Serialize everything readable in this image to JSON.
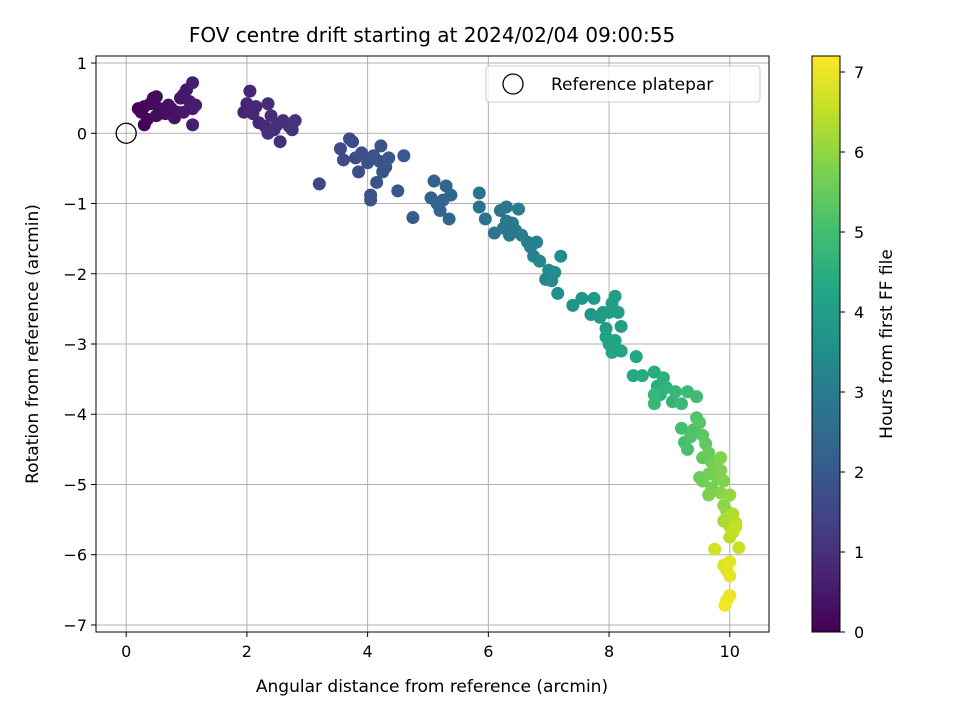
{
  "chart_data": {
    "type": "scatter",
    "title": "FOV centre drift starting at 2024/02/04 09:00:55",
    "xlabel": "Angular distance from reference (arcmin)",
    "ylabel": "Rotation from reference (arcmin)",
    "xlim": [
      -0.5,
      10.65
    ],
    "ylim": [
      -7.1,
      1.1
    ],
    "x_ticks": [
      0,
      2,
      4,
      6,
      8,
      10
    ],
    "y_ticks": [
      1,
      0,
      -1,
      -2,
      -3,
      -4,
      -5,
      -6,
      -7
    ],
    "grid": true,
    "legend": {
      "position": "top-right",
      "entries": [
        "Reference platepar"
      ]
    },
    "reference_point": {
      "x": 0,
      "y": 0
    },
    "colorbar": {
      "label": "Hours from first FF file",
      "colormap": "viridis",
      "range": [
        0,
        7.2
      ],
      "ticks": [
        0,
        1,
        2,
        3,
        4,
        5,
        6,
        7
      ]
    },
    "points": [
      {
        "x": 0.2,
        "y": 0.35,
        "t": 0.05
      },
      {
        "x": 0.3,
        "y": 0.38,
        "t": 0.1
      },
      {
        "x": 0.25,
        "y": 0.3,
        "t": 0.12
      },
      {
        "x": 0.35,
        "y": 0.2,
        "t": 0.15
      },
      {
        "x": 0.4,
        "y": 0.42,
        "t": 0.18
      },
      {
        "x": 0.45,
        "y": 0.5,
        "t": 0.2
      },
      {
        "x": 0.5,
        "y": 0.52,
        "t": 0.22
      },
      {
        "x": 0.55,
        "y": 0.35,
        "t": 0.25
      },
      {
        "x": 0.6,
        "y": 0.3,
        "t": 0.28
      },
      {
        "x": 0.65,
        "y": 0.28,
        "t": 0.3
      },
      {
        "x": 0.7,
        "y": 0.4,
        "t": 0.32
      },
      {
        "x": 0.75,
        "y": 0.35,
        "t": 0.35
      },
      {
        "x": 0.8,
        "y": 0.22,
        "t": 0.38
      },
      {
        "x": 0.85,
        "y": 0.3,
        "t": 0.4
      },
      {
        "x": 0.9,
        "y": 0.5,
        "t": 0.42
      },
      {
        "x": 0.95,
        "y": 0.55,
        "t": 0.45
      },
      {
        "x": 1.0,
        "y": 0.62,
        "t": 0.5
      },
      {
        "x": 1.05,
        "y": 0.45,
        "t": 0.52
      },
      {
        "x": 1.1,
        "y": 0.35,
        "t": 0.55
      },
      {
        "x": 1.15,
        "y": 0.4,
        "t": 0.58
      },
      {
        "x": 1.1,
        "y": 0.72,
        "t": 0.6
      },
      {
        "x": 1.1,
        "y": 0.12,
        "t": 0.62
      },
      {
        "x": 0.3,
        "y": 0.12,
        "t": 0.08
      },
      {
        "x": 0.5,
        "y": 0.25,
        "t": 0.2
      },
      {
        "x": 0.95,
        "y": 0.3,
        "t": 0.48
      },
      {
        "x": 0.7,
        "y": 0.32,
        "t": 0.33
      },
      {
        "x": 1.95,
        "y": 0.3,
        "t": 0.7
      },
      {
        "x": 2.0,
        "y": 0.42,
        "t": 0.72
      },
      {
        "x": 2.05,
        "y": 0.6,
        "t": 0.75
      },
      {
        "x": 2.1,
        "y": 0.28,
        "t": 0.78
      },
      {
        "x": 2.15,
        "y": 0.38,
        "t": 0.8
      },
      {
        "x": 2.2,
        "y": 0.15,
        "t": 0.82
      },
      {
        "x": 2.3,
        "y": 0.1,
        "t": 0.85
      },
      {
        "x": 2.35,
        "y": 0.42,
        "t": 0.88
      },
      {
        "x": 2.4,
        "y": 0.25,
        "t": 0.9
      },
      {
        "x": 2.45,
        "y": 0.05,
        "t": 0.92
      },
      {
        "x": 2.5,
        "y": 0.12,
        "t": 0.95
      },
      {
        "x": 2.55,
        "y": -0.12,
        "t": 0.98
      },
      {
        "x": 2.6,
        "y": 0.18,
        "t": 1.0
      },
      {
        "x": 2.7,
        "y": 0.1,
        "t": 1.02
      },
      {
        "x": 2.75,
        "y": 0.05,
        "t": 1.05
      },
      {
        "x": 2.8,
        "y": 0.18,
        "t": 1.08
      },
      {
        "x": 2.35,
        "y": 0.0,
        "t": 0.96
      },
      {
        "x": 3.2,
        "y": -0.72,
        "t": 1.5
      },
      {
        "x": 3.55,
        "y": -0.22,
        "t": 1.6
      },
      {
        "x": 3.6,
        "y": -0.38,
        "t": 1.62
      },
      {
        "x": 3.7,
        "y": -0.08,
        "t": 1.65
      },
      {
        "x": 3.75,
        "y": -0.12,
        "t": 1.68
      },
      {
        "x": 3.8,
        "y": -0.35,
        "t": 1.7
      },
      {
        "x": 3.85,
        "y": -0.55,
        "t": 1.72
      },
      {
        "x": 3.9,
        "y": -0.28,
        "t": 1.75
      },
      {
        "x": 4.0,
        "y": -0.42,
        "t": 1.78
      },
      {
        "x": 4.05,
        "y": -0.88,
        "t": 1.8
      },
      {
        "x": 4.1,
        "y": -0.32,
        "t": 1.82
      },
      {
        "x": 4.15,
        "y": -0.7,
        "t": 1.85
      },
      {
        "x": 4.2,
        "y": -0.4,
        "t": 1.88
      },
      {
        "x": 4.22,
        "y": -0.18,
        "t": 1.9
      },
      {
        "x": 4.3,
        "y": -0.48,
        "t": 1.92
      },
      {
        "x": 4.35,
        "y": -0.35,
        "t": 1.95
      },
      {
        "x": 4.5,
        "y": -0.82,
        "t": 1.98
      },
      {
        "x": 4.6,
        "y": -0.32,
        "t": 2.0
      },
      {
        "x": 4.75,
        "y": -1.2,
        "t": 2.05
      },
      {
        "x": 4.05,
        "y": -0.95,
        "t": 1.81
      },
      {
        "x": 4.25,
        "y": -0.55,
        "t": 1.91
      },
      {
        "x": 5.05,
        "y": -0.92,
        "t": 2.2
      },
      {
        "x": 5.1,
        "y": -0.68,
        "t": 2.25
      },
      {
        "x": 5.15,
        "y": -1.0,
        "t": 2.28
      },
      {
        "x": 5.2,
        "y": -1.1,
        "t": 2.3
      },
      {
        "x": 5.25,
        "y": -0.95,
        "t": 2.32
      },
      {
        "x": 5.3,
        "y": -0.75,
        "t": 2.35
      },
      {
        "x": 5.35,
        "y": -1.22,
        "t": 2.38
      },
      {
        "x": 5.38,
        "y": -0.88,
        "t": 2.4
      },
      {
        "x": 5.85,
        "y": -0.85,
        "t": 2.7
      },
      {
        "x": 5.85,
        "y": -1.05,
        "t": 2.72
      },
      {
        "x": 5.95,
        "y": -1.22,
        "t": 2.75
      },
      {
        "x": 6.1,
        "y": -1.42,
        "t": 2.8
      },
      {
        "x": 6.2,
        "y": -1.1,
        "t": 2.82
      },
      {
        "x": 6.25,
        "y": -1.35,
        "t": 2.85
      },
      {
        "x": 6.3,
        "y": -1.05,
        "t": 2.88
      },
      {
        "x": 6.35,
        "y": -1.45,
        "t": 2.9
      },
      {
        "x": 6.4,
        "y": -1.28,
        "t": 2.92
      },
      {
        "x": 6.45,
        "y": -1.38,
        "t": 2.95
      },
      {
        "x": 6.5,
        "y": -1.08,
        "t": 2.98
      },
      {
        "x": 6.55,
        "y": -1.45,
        "t": 3.0
      },
      {
        "x": 6.65,
        "y": -1.55,
        "t": 3.05
      },
      {
        "x": 6.7,
        "y": -1.62,
        "t": 3.1
      },
      {
        "x": 6.75,
        "y": -1.75,
        "t": 3.15
      },
      {
        "x": 6.8,
        "y": -1.55,
        "t": 3.2
      },
      {
        "x": 6.85,
        "y": -1.82,
        "t": 3.25
      },
      {
        "x": 6.95,
        "y": -2.08,
        "t": 3.3
      },
      {
        "x": 7.0,
        "y": -1.95,
        "t": 3.35
      },
      {
        "x": 7.05,
        "y": -2.1,
        "t": 3.4
      },
      {
        "x": 7.1,
        "y": -1.98,
        "t": 3.45
      },
      {
        "x": 7.2,
        "y": -1.75,
        "t": 3.5
      },
      {
        "x": 7.15,
        "y": -2.28,
        "t": 3.55
      },
      {
        "x": 6.3,
        "y": -1.25,
        "t": 2.89
      },
      {
        "x": 7.4,
        "y": -2.45,
        "t": 3.7
      },
      {
        "x": 7.55,
        "y": -2.35,
        "t": 3.75
      },
      {
        "x": 7.7,
        "y": -2.58,
        "t": 3.8
      },
      {
        "x": 7.75,
        "y": -2.35,
        "t": 3.85
      },
      {
        "x": 7.85,
        "y": -2.62,
        "t": 3.9
      },
      {
        "x": 7.9,
        "y": -2.55,
        "t": 3.92
      },
      {
        "x": 7.95,
        "y": -2.78,
        "t": 3.95
      },
      {
        "x": 8.0,
        "y": -2.55,
        "t": 3.98
      },
      {
        "x": 8.05,
        "y": -2.42,
        "t": 4.0
      },
      {
        "x": 8.1,
        "y": -2.32,
        "t": 4.02
      },
      {
        "x": 8.15,
        "y": -2.55,
        "t": 4.05
      },
      {
        "x": 8.2,
        "y": -2.75,
        "t": 4.08
      },
      {
        "x": 7.95,
        "y": -2.9,
        "t": 4.1
      },
      {
        "x": 8.0,
        "y": -3.0,
        "t": 4.12
      },
      {
        "x": 8.05,
        "y": -3.12,
        "t": 4.15
      },
      {
        "x": 8.1,
        "y": -2.95,
        "t": 4.18
      },
      {
        "x": 8.2,
        "y": -3.1,
        "t": 4.2
      },
      {
        "x": 8.45,
        "y": -3.18,
        "t": 4.3
      },
      {
        "x": 8.4,
        "y": -3.45,
        "t": 4.35
      },
      {
        "x": 8.55,
        "y": -3.45,
        "t": 4.4
      },
      {
        "x": 8.75,
        "y": -3.4,
        "t": 4.45
      },
      {
        "x": 8.8,
        "y": -3.6,
        "t": 4.5
      },
      {
        "x": 8.85,
        "y": -3.72,
        "t": 4.55
      },
      {
        "x": 8.9,
        "y": -3.48,
        "t": 4.6
      },
      {
        "x": 8.95,
        "y": -3.62,
        "t": 4.65
      },
      {
        "x": 9.05,
        "y": -3.82,
        "t": 4.7
      },
      {
        "x": 9.1,
        "y": -3.68,
        "t": 4.75
      },
      {
        "x": 8.75,
        "y": -3.85,
        "t": 4.8
      },
      {
        "x": 9.2,
        "y": -3.85,
        "t": 4.85
      },
      {
        "x": 9.3,
        "y": -3.68,
        "t": 4.9
      },
      {
        "x": 9.45,
        "y": -3.75,
        "t": 4.95
      },
      {
        "x": 8.75,
        "y": -3.72,
        "t": 4.78
      },
      {
        "x": 9.2,
        "y": -4.2,
        "t": 5.0
      },
      {
        "x": 9.25,
        "y": -4.4,
        "t": 5.05
      },
      {
        "x": 9.3,
        "y": -4.5,
        "t": 5.1
      },
      {
        "x": 9.35,
        "y": -4.32,
        "t": 5.15
      },
      {
        "x": 9.4,
        "y": -4.22,
        "t": 5.2
      },
      {
        "x": 9.45,
        "y": -4.05,
        "t": 5.25
      },
      {
        "x": 9.5,
        "y": -4.12,
        "t": 5.3
      },
      {
        "x": 9.55,
        "y": -4.3,
        "t": 5.35
      },
      {
        "x": 9.6,
        "y": -4.42,
        "t": 5.4
      },
      {
        "x": 9.55,
        "y": -4.62,
        "t": 5.45
      },
      {
        "x": 9.65,
        "y": -4.55,
        "t": 5.5
      },
      {
        "x": 9.7,
        "y": -4.68,
        "t": 5.55
      },
      {
        "x": 9.5,
        "y": -4.9,
        "t": 5.6
      },
      {
        "x": 9.55,
        "y": -4.95,
        "t": 5.62
      },
      {
        "x": 9.65,
        "y": -4.85,
        "t": 5.65
      },
      {
        "x": 9.7,
        "y": -5.05,
        "t": 5.7
      },
      {
        "x": 9.75,
        "y": -4.75,
        "t": 5.72
      },
      {
        "x": 9.8,
        "y": -4.92,
        "t": 5.75
      },
      {
        "x": 9.65,
        "y": -5.15,
        "t": 5.78
      },
      {
        "x": 9.85,
        "y": -4.8,
        "t": 5.8
      },
      {
        "x": 9.9,
        "y": -4.95,
        "t": 5.85
      },
      {
        "x": 9.85,
        "y": -5.12,
        "t": 5.9
      },
      {
        "x": 9.9,
        "y": -5.3,
        "t": 5.95
      },
      {
        "x": 9.95,
        "y": -5.38,
        "t": 6.0
      },
      {
        "x": 10.0,
        "y": -5.15,
        "t": 6.05
      },
      {
        "x": 9.85,
        "y": -4.62,
        "t": 5.82
      },
      {
        "x": 9.9,
        "y": -5.52,
        "t": 6.2
      },
      {
        "x": 9.95,
        "y": -5.48,
        "t": 6.25
      },
      {
        "x": 10.0,
        "y": -5.6,
        "t": 6.3
      },
      {
        "x": 10.05,
        "y": -5.42,
        "t": 6.35
      },
      {
        "x": 10.1,
        "y": -5.55,
        "t": 6.4
      },
      {
        "x": 10.0,
        "y": -5.75,
        "t": 6.45
      },
      {
        "x": 10.05,
        "y": -5.68,
        "t": 6.5
      },
      {
        "x": 10.1,
        "y": -5.6,
        "t": 6.55
      },
      {
        "x": 10.15,
        "y": -5.9,
        "t": 6.6
      },
      {
        "x": 9.75,
        "y": -5.92,
        "t": 6.7
      },
      {
        "x": 9.9,
        "y": -6.15,
        "t": 6.8
      },
      {
        "x": 9.95,
        "y": -6.22,
        "t": 6.85
      },
      {
        "x": 10.0,
        "y": -6.1,
        "t": 6.9
      },
      {
        "x": 10.0,
        "y": -6.3,
        "t": 6.95
      },
      {
        "x": 10.0,
        "y": -6.58,
        "t": 7.0
      },
      {
        "x": 9.95,
        "y": -6.65,
        "t": 7.05
      },
      {
        "x": 9.92,
        "y": -6.72,
        "t": 7.1
      }
    ]
  }
}
